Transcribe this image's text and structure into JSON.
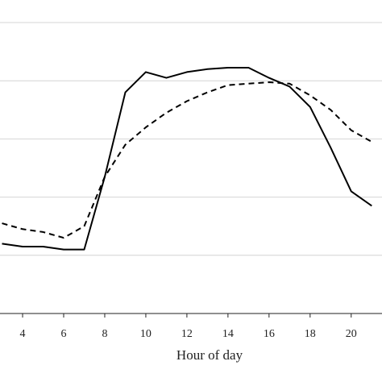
{
  "chart_data": {
    "type": "line",
    "title": "",
    "xlabel": "Hour of day",
    "ylabel": "",
    "xlim": [
      2.9,
      21.5
    ],
    "ylim": [
      0,
      1
    ],
    "x_ticks": [
      4,
      6,
      8,
      10,
      12,
      14,
      16,
      18,
      20
    ],
    "y_gridlines": [
      0.2,
      0.4,
      0.6,
      0.8,
      1.0
    ],
    "grid": "horizontal",
    "legend": "none",
    "series": [
      {
        "style": "solid",
        "color": "#000000",
        "points": [
          [
            3,
            0.24
          ],
          [
            4,
            0.23
          ],
          [
            5,
            0.23
          ],
          [
            6,
            0.22
          ],
          [
            7,
            0.22
          ],
          [
            8,
            0.47
          ],
          [
            9,
            0.76
          ],
          [
            10,
            0.83
          ],
          [
            11,
            0.81
          ],
          [
            12,
            0.83
          ],
          [
            13,
            0.84
          ],
          [
            14,
            0.845
          ],
          [
            15,
            0.845
          ],
          [
            16,
            0.81
          ],
          [
            17,
            0.78
          ],
          [
            18,
            0.71
          ],
          [
            19,
            0.57
          ],
          [
            20,
            0.42
          ],
          [
            21,
            0.37
          ]
        ]
      },
      {
        "style": "dashed",
        "color": "#000000",
        "points": [
          [
            3,
            0.31
          ],
          [
            4,
            0.29
          ],
          [
            5,
            0.28
          ],
          [
            6,
            0.26
          ],
          [
            7,
            0.3
          ],
          [
            8,
            0.47
          ],
          [
            9,
            0.58
          ],
          [
            10,
            0.64
          ],
          [
            11,
            0.69
          ],
          [
            12,
            0.73
          ],
          [
            13,
            0.76
          ],
          [
            14,
            0.785
          ],
          [
            15,
            0.79
          ],
          [
            16,
            0.795
          ],
          [
            17,
            0.79
          ],
          [
            18,
            0.75
          ],
          [
            19,
            0.7
          ],
          [
            20,
            0.63
          ],
          [
            21,
            0.59
          ]
        ]
      }
    ]
  }
}
